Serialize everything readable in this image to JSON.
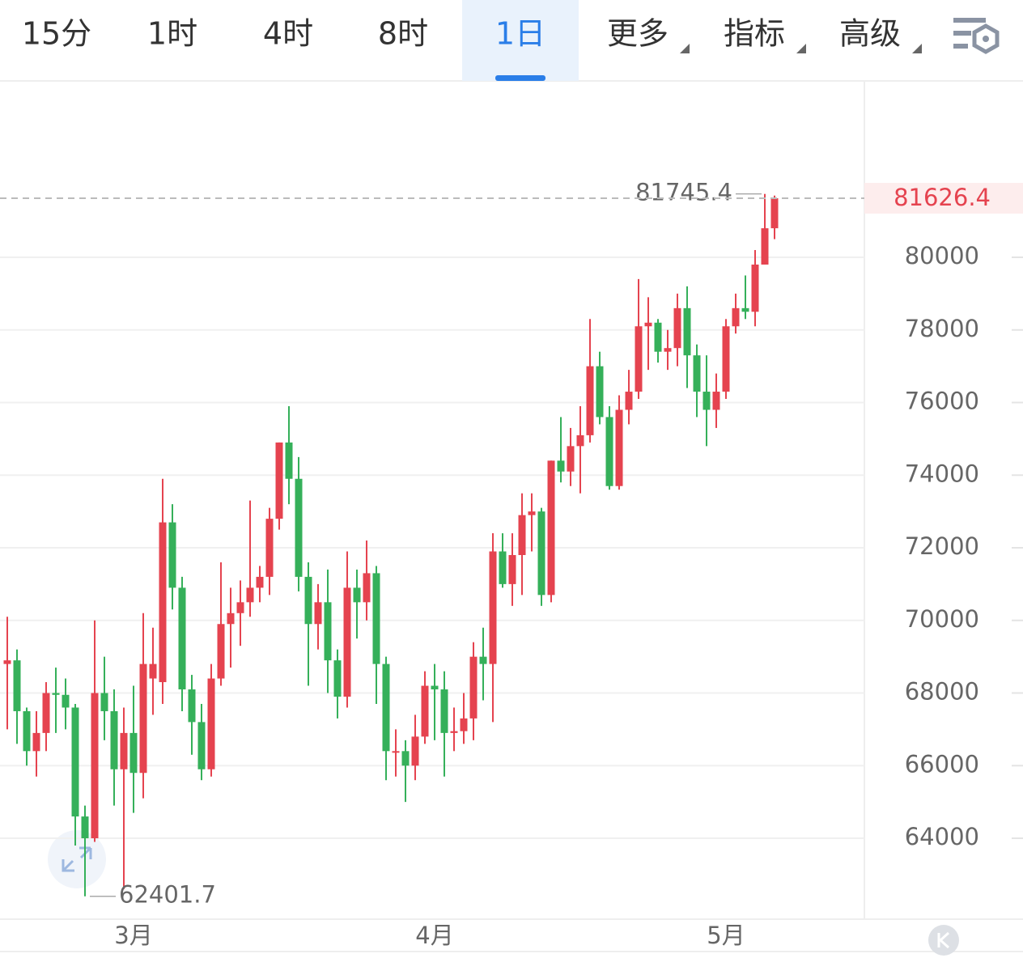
{
  "tabs": [
    {
      "label": "15分"
    },
    {
      "label": "1时"
    },
    {
      "label": "4时"
    },
    {
      "label": "8时"
    },
    {
      "label": "1日",
      "selected": true
    },
    {
      "label": "更多",
      "dropdown": true
    },
    {
      "label": "指标",
      "dropdown": true
    },
    {
      "label": "高级",
      "dropdown": true
    }
  ],
  "chart_data": {
    "type": "candlestick",
    "categories": [
      null,
      null,
      null,
      null,
      null,
      null,
      null,
      null,
      null,
      null,
      null,
      null,
      null,
      "3月",
      null,
      null,
      null,
      null,
      null,
      null,
      null,
      null,
      null,
      null,
      null,
      null,
      null,
      null,
      null,
      null,
      null,
      null,
      null,
      null,
      null,
      null,
      null,
      null,
      null,
      null,
      null,
      null,
      null,
      null,
      "4月",
      null,
      null,
      null,
      null,
      null,
      null,
      null,
      null,
      null,
      null,
      null,
      null,
      null,
      null,
      null,
      null,
      null,
      null,
      null,
      null,
      null,
      null,
      null,
      null,
      null,
      null,
      null,
      null,
      null,
      "5月",
      null,
      null,
      null,
      null,
      null
    ],
    "open": [
      68800,
      68900,
      67500,
      66400,
      66900,
      68000,
      67950,
      67600,
      64600,
      64000,
      68000,
      67500,
      65900,
      66900,
      65800,
      68400,
      68300,
      72700,
      70900,
      68100,
      67200,
      65900,
      68400,
      69900,
      70200,
      70500,
      70900,
      71200,
      72800,
      74900,
      73900,
      71200,
      69900,
      70500,
      68900,
      67900,
      70900,
      70500,
      71300,
      68800,
      66400,
      66400,
      66000,
      66800,
      68200,
      68100,
      66900,
      66950,
      67300,
      69000,
      68800,
      71900,
      71000,
      71800,
      72900,
      73000,
      70700,
      74400,
      74100,
      74800,
      75100,
      77000,
      75600,
      73700,
      75800,
      76300,
      78100,
      78200,
      77400,
      77500,
      78600,
      77300,
      76300,
      75800,
      76300,
      78100,
      78600,
      78500,
      79800,
      80800
    ],
    "high": [
      70100,
      69200,
      67600,
      67500,
      68300,
      68700,
      68400,
      67700,
      64900,
      70000,
      69000,
      68100,
      67600,
      68200,
      70200,
      69800,
      73900,
      73200,
      71200,
      68500,
      67700,
      68800,
      71600,
      70900,
      71100,
      73300,
      71500,
      73100,
      74900,
      75900,
      74500,
      71600,
      71000,
      71400,
      69200,
      71900,
      71400,
      72200,
      71500,
      69000,
      67000,
      66700,
      67400,
      68600,
      68800,
      68600,
      67600,
      68000,
      69400,
      69800,
      72400,
      72400,
      72400,
      73500,
      73500,
      73100,
      74400,
      75600,
      75300,
      75900,
      78300,
      77400,
      75900,
      76200,
      76900,
      79400,
      78900,
      78300,
      78000,
      79000,
      79200,
      77600,
      77300,
      76800,
      78300,
      79000,
      79500,
      80200,
      81745.4,
      81700
    ],
    "low": [
      67000,
      66600,
      66000,
      65700,
      66400,
      66900,
      67000,
      63800,
      62401.7,
      63900,
      66700,
      64900,
      62600,
      64700,
      65100,
      67400,
      67700,
      70300,
      67500,
      66300,
      65600,
      65700,
      68200,
      68700,
      69300,
      70100,
      70500,
      70700,
      72500,
      73200,
      70800,
      68200,
      69200,
      68000,
      67300,
      67600,
      69500,
      70000,
      67700,
      65600,
      65700,
      65000,
      65600,
      66600,
      66700,
      65700,
      66400,
      66600,
      66700,
      67800,
      67200,
      70900,
      70400,
      70700,
      71900,
      70400,
      70500,
      73800,
      73700,
      73500,
      74900,
      75400,
      73600,
      73600,
      75400,
      76100,
      76900,
      77100,
      76900,
      77000,
      76400,
      75600,
      74800,
      75300,
      76100,
      77900,
      78300,
      78100,
      79800,
      80500
    ],
    "close": [
      68900,
      67500,
      66400,
      66900,
      68000,
      67950,
      67600,
      64600,
      64000,
      68000,
      67500,
      65900,
      66900,
      65800,
      68800,
      68800,
      72700,
      70900,
      68100,
      67200,
      65900,
      68400,
      69900,
      70200,
      70500,
      70900,
      71200,
      72800,
      74900,
      73900,
      71200,
      69900,
      70500,
      68900,
      67900,
      70900,
      70500,
      71300,
      68800,
      66400,
      66400,
      66000,
      66800,
      68200,
      68100,
      66900,
      66950,
      67300,
      69000,
      68800,
      71900,
      71000,
      71800,
      72900,
      73000,
      70700,
      74400,
      74100,
      74800,
      75100,
      77000,
      75600,
      73700,
      75800,
      76300,
      78100,
      78200,
      77400,
      77500,
      78600,
      77300,
      76300,
      75800,
      76300,
      78100,
      78600,
      78500,
      79800,
      80800,
      81626.4
    ],
    "up_color": "#e5434f",
    "down_color": "#35b05a",
    "ylim": [
      61772,
      84858
    ],
    "yticks": [
      64000,
      66000,
      68000,
      70000,
      72000,
      74000,
      76000,
      78000,
      80000
    ],
    "grid": true
  }
}
